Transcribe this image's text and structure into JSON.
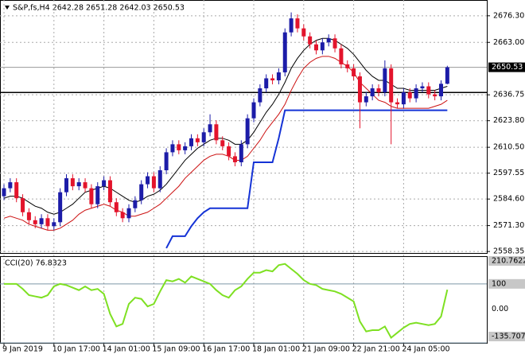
{
  "chart_data": {
    "type": "candlestick",
    "title": "S&P,fs,H4  2642.28 2651.28 2642.03 2650.53",
    "categories": [
      "9 Jan 2019",
      null,
      null,
      null,
      null,
      null,
      null,
      null,
      "10 Jan 17:00",
      null,
      null,
      null,
      null,
      null,
      null,
      null,
      "14 Jan 01:00",
      null,
      null,
      null,
      null,
      null,
      null,
      null,
      "15 Jan 09:00",
      null,
      null,
      null,
      null,
      null,
      null,
      null,
      "16 Jan 17:00",
      null,
      null,
      null,
      null,
      null,
      null,
      null,
      "18 Jan 01:00",
      null,
      null,
      null,
      null,
      null,
      null,
      null,
      "21 Jan 09:00",
      null,
      null,
      null,
      null,
      null,
      null,
      null,
      "22 Jan 21:00",
      null,
      null,
      null,
      null,
      null,
      null,
      null,
      "24 Jan 05:00",
      null,
      null,
      null,
      null,
      null,
      null,
      null
    ],
    "open": [
      2586,
      2590,
      2593,
      2585,
      2578,
      2574,
      2572,
      2575,
      2571,
      2573,
      2588,
      2595,
      2591,
      2593,
      2590,
      2582,
      2591,
      2594,
      2583,
      2578,
      2575,
      2580,
      2584,
      2592,
      2596,
      2590,
      2599,
      2608,
      2612,
      2609,
      2611,
      2615,
      2613,
      2618,
      2622,
      2614,
      2611,
      2606,
      2603,
      2612,
      2625,
      2633,
      2640,
      2645,
      2644,
      2648,
      2668,
      2675,
      2670,
      2666,
      2662,
      2659,
      2663,
      2665,
      2660,
      2652,
      2650,
      2646,
      2633,
      2636,
      2640,
      2638,
      2650,
      2633,
      2632,
      2638,
      2635,
      2640,
      2641,
      2637,
      2636,
      2642.28
    ],
    "high": [
      2592,
      2595,
      2595,
      2587,
      2580,
      2576,
      2577,
      2577,
      2575,
      2590,
      2597,
      2597,
      2595,
      2595,
      2592,
      2593,
      2596,
      2596,
      2585,
      2580,
      2582,
      2586,
      2594,
      2598,
      2598,
      2601,
      2610,
      2614,
      2614,
      2613,
      2617,
      2617,
      2620,
      2627,
      2624,
      2616,
      2613,
      2608,
      2614,
      2627,
      2635,
      2642,
      2647,
      2647,
      2650,
      2670,
      2678,
      2677,
      2672,
      2668,
      2664,
      2665,
      2667,
      2667,
      2662,
      2654,
      2652,
      2648,
      2638,
      2642,
      2642,
      2654,
      2652,
      2635,
      2640,
      2640,
      2642,
      2643,
      2643,
      2639,
      2644,
      2651.28
    ],
    "low": [
      2584,
      2588,
      2583,
      2576,
      2572,
      2570,
      2570,
      2569,
      2569,
      2571,
      2586,
      2589,
      2589,
      2588,
      2580,
      2580,
      2589,
      2581,
      2576,
      2573,
      2573,
      2578,
      2582,
      2590,
      2588,
      2588,
      2597,
      2606,
      2607,
      2607,
      2609,
      2611,
      2611,
      2616,
      2612,
      2609,
      2604,
      2601,
      2601,
      2610,
      2623,
      2631,
      2638,
      2642,
      2642,
      2646,
      2666,
      2668,
      2664,
      2660,
      2657,
      2657,
      2661,
      2658,
      2650,
      2648,
      2644,
      2620,
      2631,
      2634,
      2636,
      2636,
      2612,
      2630,
      2630,
      2633,
      2633,
      2638,
      2635,
      2634,
      2634,
      2642.03
    ],
    "close": [
      2590,
      2593,
      2585,
      2578,
      2574,
      2572,
      2575,
      2571,
      2573,
      2588,
      2595,
      2591,
      2593,
      2590,
      2582,
      2591,
      2594,
      2583,
      2578,
      2575,
      2580,
      2584,
      2592,
      2596,
      2590,
      2599,
      2608,
      2612,
      2609,
      2611,
      2615,
      2613,
      2618,
      2622,
      2614,
      2611,
      2606,
      2603,
      2612,
      2625,
      2633,
      2640,
      2645,
      2644,
      2648,
      2668,
      2675,
      2670,
      2666,
      2662,
      2659,
      2663,
      2665,
      2660,
      2652,
      2650,
      2646,
      2633,
      2636,
      2640,
      2638,
      2650,
      2633,
      2632,
      2638,
      2635,
      2640,
      2641,
      2637,
      2636,
      2642.28,
      2650.53
    ],
    "up_color": "#1c1ca8",
    "down_color": "#e3142c",
    "overlays": [
      {
        "color": "#000000",
        "values": [
          2585,
          2586,
          2586,
          2585,
          2583,
          2581,
          2580,
          2578,
          2577,
          2578,
          2580,
          2582,
          2585,
          2588,
          2589,
          2590,
          2591,
          2590,
          2588,
          2586,
          2584,
          2583,
          2584,
          2586,
          2587,
          2589,
          2592,
          2596,
          2600,
          2604,
          2607,
          2610,
          2612,
          2614,
          2615,
          2615,
          2614,
          2612,
          2612,
          2614,
          2618,
          2623,
          2628,
          2632,
          2637,
          2643,
          2650,
          2655,
          2659,
          2662,
          2664,
          2665,
          2665,
          2664,
          2662,
          2660,
          2657,
          2653,
          2649,
          2646,
          2644,
          2644,
          2642,
          2640,
          2640,
          2639,
          2639,
          2639,
          2639,
          2639,
          2640,
          2641
        ]
      },
      {
        "color": "#cc1111",
        "values": [
          2575,
          2576,
          2575,
          2574,
          2572,
          2571,
          2570,
          2569,
          2569,
          2570,
          2572,
          2574,
          2577,
          2579,
          2580,
          2581,
          2582,
          2581,
          2579,
          2578,
          2576,
          2576,
          2577,
          2578,
          2580,
          2582,
          2585,
          2588,
          2591,
          2595,
          2598,
          2601,
          2604,
          2606,
          2607,
          2607,
          2606,
          2604,
          2604,
          2606,
          2610,
          2614,
          2619,
          2623,
          2627,
          2632,
          2639,
          2645,
          2650,
          2653,
          2655,
          2656,
          2656,
          2655,
          2653,
          2651,
          2648,
          2643,
          2640,
          2637,
          2634,
          2633,
          2631,
          2630,
          2630,
          2630,
          2630,
          2630,
          2630,
          2631,
          2632,
          2634
        ]
      },
      {
        "color": "#1533d6",
        "values": [
          null,
          null,
          null,
          null,
          null,
          null,
          null,
          null,
          null,
          null,
          null,
          null,
          null,
          null,
          null,
          null,
          null,
          null,
          null,
          null,
          null,
          null,
          null,
          null,
          null,
          null,
          2560,
          2566,
          2566,
          2566,
          2571,
          2575,
          2578,
          2580,
          2580,
          2580,
          2580,
          2580,
          2580,
          2580,
          2603,
          2603,
          2603,
          2603,
          2615,
          2629,
          2629,
          2629,
          2629,
          2629,
          2629,
          2629,
          2629,
          2629,
          2629,
          2629,
          2629,
          2629,
          2629,
          2629,
          2629,
          2629,
          2629,
          2629,
          2629,
          2629,
          2629,
          2629,
          2629,
          2629,
          2629,
          2629
        ]
      }
    ],
    "ylim": [
      2557.6,
      2684.2
    ],
    "yticks": [
      2558.35,
      {
        "value": 2571.3,
        "label": "2571.30"
      },
      {
        "value": 2584.6,
        "label": "2584.60"
      },
      2597.55,
      {
        "value": 2610.5,
        "label": "2610.50"
      },
      {
        "value": 2623.8,
        "label": "2623.80"
      },
      2636.75,
      {
        "value": 2663,
        "label": "2663.00"
      },
      {
        "value": 2676.3,
        "label": "2676.30"
      }
    ],
    "grid": true,
    "current_price": 2650.53,
    "support_level": 2637.9,
    "indicator": {
      "type": "line",
      "title": "CCI(20) 76.8323",
      "color": "#7ee022",
      "values": [
        100,
        100,
        100,
        80,
        55,
        50,
        45,
        55,
        90,
        100,
        95,
        85,
        75,
        90,
        75,
        80,
        60,
        -20,
        -70,
        -60,
        20,
        45,
        40,
        10,
        20,
        70,
        115,
        110,
        120,
        105,
        130,
        120,
        110,
        100,
        75,
        55,
        45,
        75,
        90,
        120,
        145,
        145,
        155,
        150,
        175,
        180,
        160,
        140,
        115,
        100,
        95,
        80,
        75,
        70,
        60,
        45,
        30,
        -50,
        -90,
        -85,
        -85,
        -70,
        -115,
        -95,
        -75,
        -60,
        -55,
        -60,
        -65,
        -60,
        -30,
        76.8323
      ],
      "ylim": [
        -135.7072,
        210.7622
      ],
      "yticks": [
        210.7622,
        100,
        {
          "value": 0,
          "label": "0.00"
        },
        -135.7072
      ]
    }
  }
}
